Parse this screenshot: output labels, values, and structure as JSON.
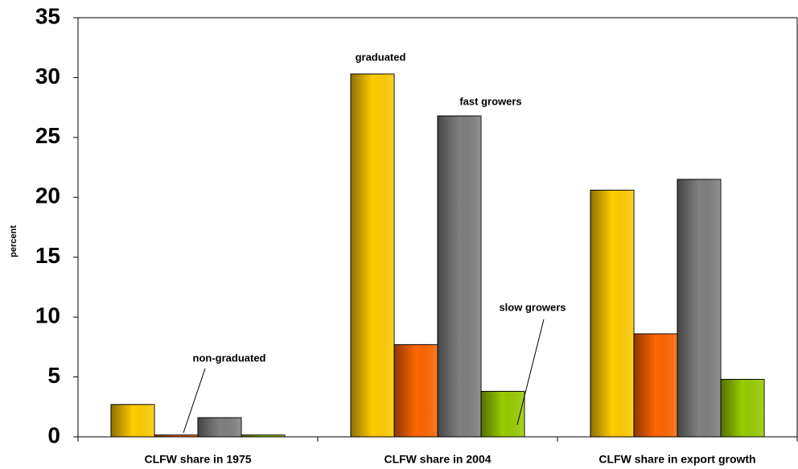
{
  "chart_data": {
    "type": "bar",
    "y_label": "percent",
    "categories": [
      "CLFW share in 1975",
      "CLFW share in 2004",
      "CLFW share in export growth"
    ],
    "series": [
      {
        "name": "graduated",
        "color": "#ffcc00",
        "values": [
          2.7,
          30.3,
          20.6
        ]
      },
      {
        "name": "non-graduated",
        "color": "#ff6600",
        "values": [
          0.15,
          7.7,
          8.6
        ]
      },
      {
        "name": "fast growers",
        "color": "#808080",
        "values": [
          1.6,
          26.8,
          21.5
        ]
      },
      {
        "name": "slow growers",
        "color": "#99cc00",
        "values": [
          0.15,
          3.8,
          4.8
        ]
      }
    ],
    "ylim": [
      0,
      35
    ],
    "yticks": [
      0,
      5,
      10,
      15,
      20,
      25,
      30,
      35
    ],
    "grid": false
  }
}
